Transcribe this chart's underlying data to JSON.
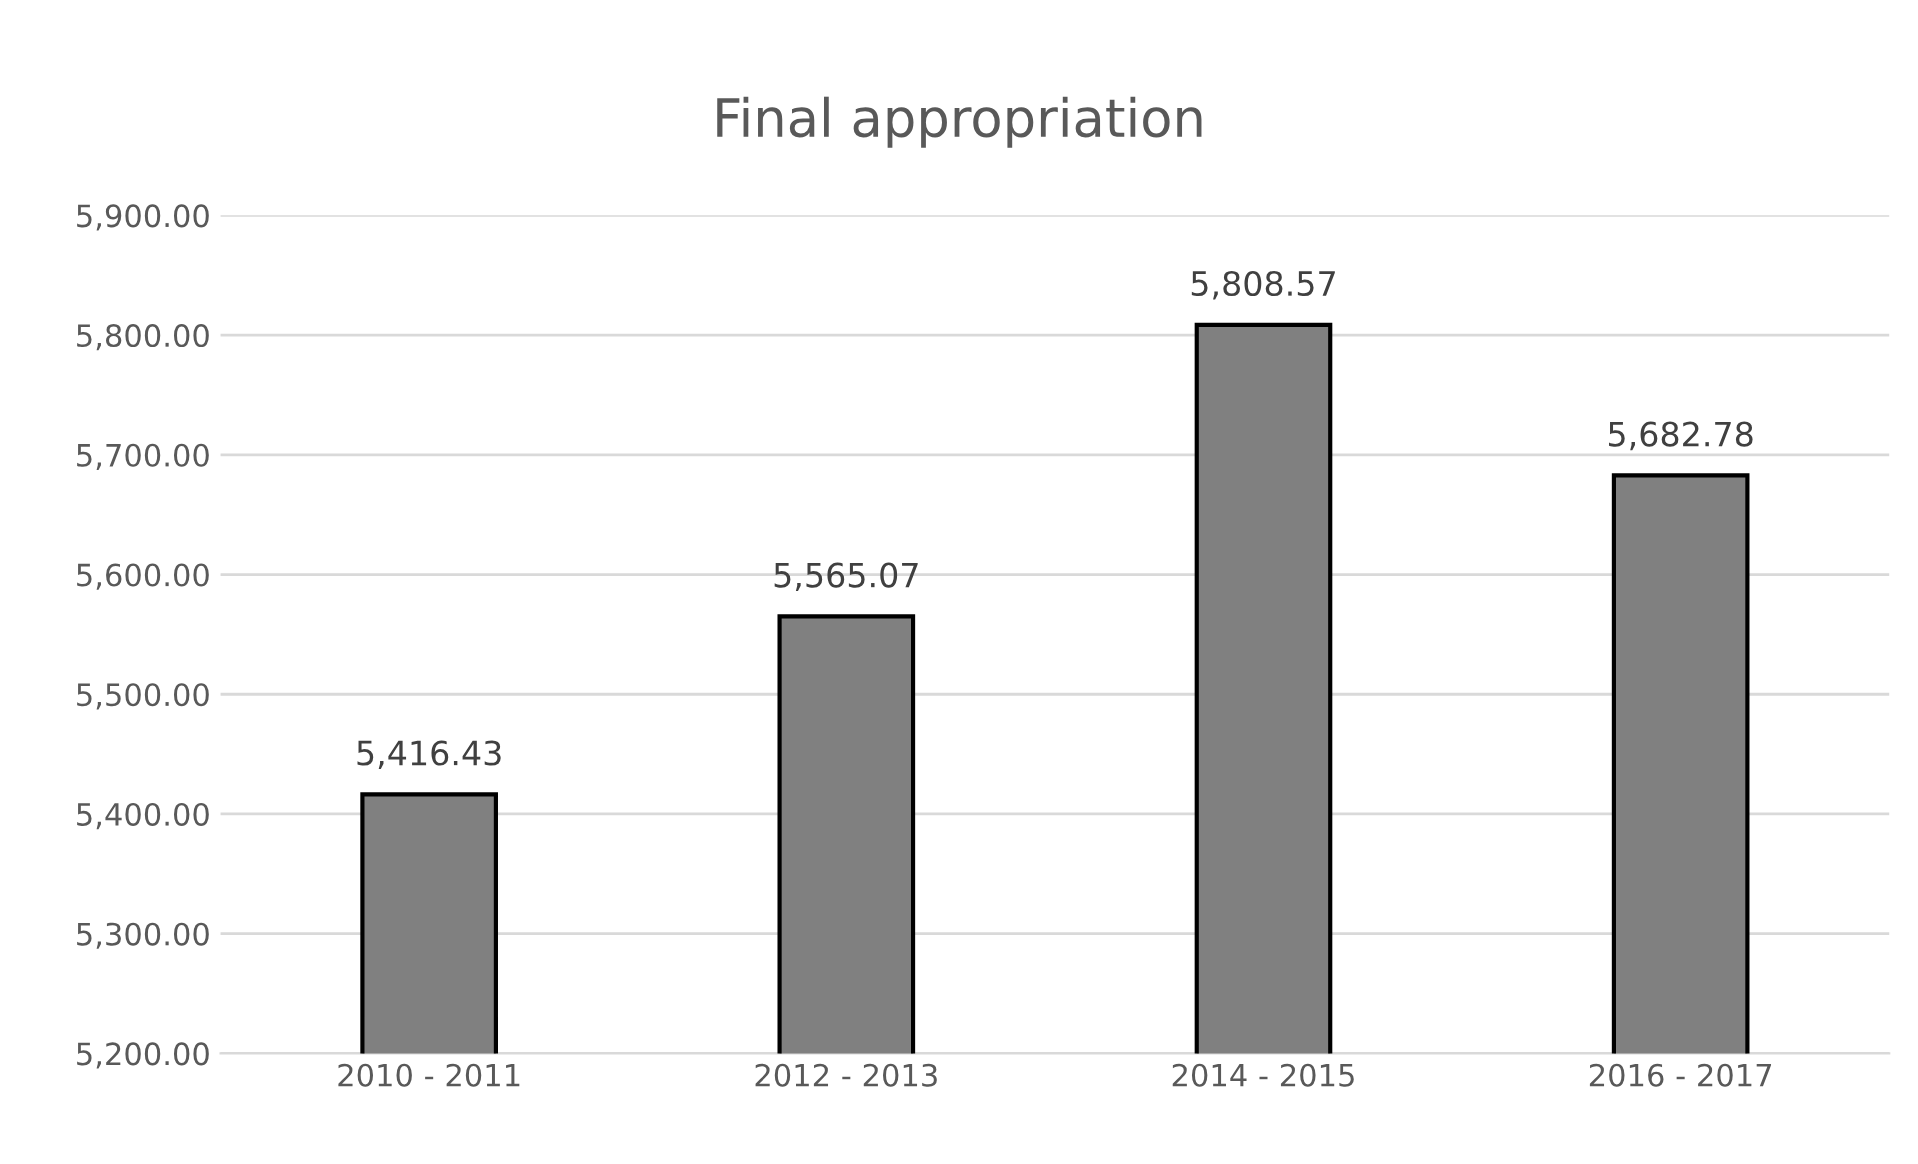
{
  "chart_data": {
    "type": "bar",
    "title": "Final appropriation",
    "categories": [
      "2010 - 2011",
      "2012 - 2013",
      "2014 - 2015",
      "2016 - 2017"
    ],
    "values": [
      5416.43,
      5565.07,
      5808.57,
      5682.78
    ],
    "value_labels": [
      "5,416.43",
      "5,565.07",
      "5,808.57",
      "5,682.78"
    ],
    "color": "#808080",
    "ylim": [
      5200,
      5900
    ],
    "yticks": [
      {
        "value": 5200,
        "label": "5,200.00"
      },
      {
        "value": 5300,
        "label": "5,300.00"
      },
      {
        "value": 5400,
        "label": "5,400.00"
      },
      {
        "value": 5500,
        "label": "5,500.00"
      },
      {
        "value": 5600,
        "label": "5,600.00"
      },
      {
        "value": 5700,
        "label": "5,700.00"
      },
      {
        "value": 5800,
        "label": "5,800.00"
      },
      {
        "value": 5900,
        "label": "5,900.00"
      }
    ],
    "grid": "y"
  }
}
